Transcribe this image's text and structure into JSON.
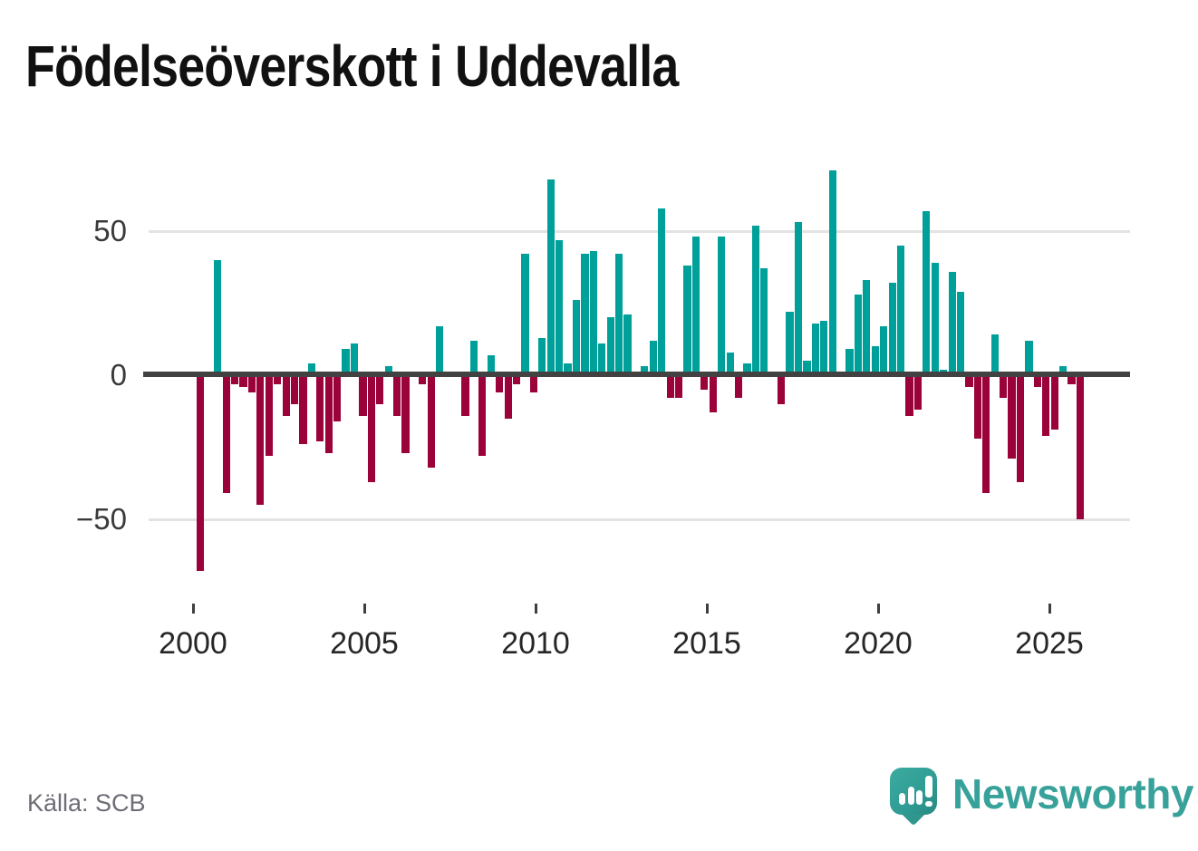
{
  "title": "Födelseöverskott i Uddevalla",
  "source": "Källa: SCB",
  "branding": {
    "wordmark": "Newsworthy",
    "logo_icon": "bar-chart-speech-bubble"
  },
  "colors": {
    "positive": "#00a09a",
    "negative": "#9b0239",
    "zero_line": "#424242",
    "gridline": "#e3e3e3",
    "brand_teal": "#38a29a"
  },
  "y_axis": {
    "tick_labels": [
      "50",
      "0",
      "−50"
    ],
    "tick_values": [
      50,
      0,
      -50
    ]
  },
  "x_axis": {
    "tick_labels": [
      "2000",
      "2005",
      "2010",
      "2015",
      "2020",
      "2025"
    ]
  },
  "chart_data": {
    "type": "bar",
    "title": "Födelseöverskott i Uddevalla",
    "x_unit": "quarter",
    "xlabel": "",
    "ylabel": "",
    "ylim": [
      -70,
      75
    ],
    "grid": "horizontal",
    "gridlines_at": [
      50,
      -50
    ],
    "legend": "none",
    "categories": [
      "2000 Q1",
      "2000 Q2",
      "2000 Q3",
      "2000 Q4",
      "2001 Q1",
      "2001 Q2",
      "2001 Q3",
      "2001 Q4",
      "2002 Q1",
      "2002 Q2",
      "2002 Q3",
      "2002 Q4",
      "2003 Q1",
      "2003 Q2",
      "2003 Q3",
      "2003 Q4",
      "2004 Q1",
      "2004 Q2",
      "2004 Q3",
      "2004 Q4",
      "2005 Q1",
      "2005 Q2",
      "2005 Q3",
      "2005 Q4",
      "2006 Q1",
      "2006 Q2",
      "2006 Q3",
      "2006 Q4",
      "2007 Q1",
      "2007 Q2",
      "2007 Q3",
      "2007 Q4",
      "2008 Q1",
      "2008 Q2",
      "2008 Q3",
      "2008 Q4",
      "2009 Q1",
      "2009 Q2",
      "2009 Q3",
      "2009 Q4",
      "2010 Q1",
      "2010 Q2",
      "2010 Q3",
      "2010 Q4",
      "2011 Q1",
      "2011 Q2",
      "2011 Q3",
      "2011 Q4",
      "2012 Q1",
      "2012 Q2",
      "2012 Q3",
      "2012 Q4",
      "2013 Q1",
      "2013 Q2",
      "2013 Q3",
      "2013 Q4",
      "2014 Q1",
      "2014 Q2",
      "2014 Q3",
      "2014 Q4",
      "2015 Q1",
      "2015 Q2",
      "2015 Q3",
      "2015 Q4",
      "2016 Q1",
      "2016 Q2",
      "2016 Q3",
      "2016 Q4",
      "2017 Q1",
      "2017 Q2",
      "2017 Q3",
      "2017 Q4",
      "2018 Q1",
      "2018 Q2",
      "2018 Q3",
      "2018 Q4",
      "2019 Q1",
      "2019 Q2",
      "2019 Q3",
      "2019 Q4",
      "2020 Q1",
      "2020 Q2",
      "2020 Q3",
      "2020 Q4",
      "2021 Q1",
      "2021 Q2",
      "2021 Q3",
      "2021 Q4",
      "2022 Q1",
      "2022 Q2",
      "2022 Q3",
      "2022 Q4",
      "2023 Q1",
      "2023 Q2",
      "2023 Q3",
      "2023 Q4",
      "2024 Q1",
      "2024 Q2",
      "2024 Q3",
      "2024 Q4",
      "2025 Q1",
      "2025 Q2",
      "2025 Q3",
      "2025 Q4"
    ],
    "values": [
      -68,
      0,
      40,
      -41,
      -3,
      -4,
      -6,
      -45,
      -28,
      -3,
      -14,
      -10,
      -24,
      4,
      -23,
      -27,
      -16,
      9,
      11,
      -14,
      -37,
      -10,
      3,
      -14,
      -27,
      1,
      -3,
      -32,
      17,
      1,
      1,
      -14,
      12,
      -28,
      7,
      -6,
      -15,
      -3,
      42,
      -6,
      13,
      68,
      47,
      4,
      26,
      42,
      43,
      11,
      20,
      42,
      21,
      0,
      3,
      12,
      58,
      -8,
      -8,
      38,
      48,
      -5,
      -13,
      48,
      8,
      -8,
      4,
      52,
      37,
      1,
      -10,
      22,
      53,
      5,
      18,
      19,
      71,
      0,
      9,
      28,
      33,
      10,
      17,
      32,
      45,
      -14,
      -12,
      57,
      39,
      2,
      36,
      29,
      -4,
      -22,
      -41,
      14,
      -8,
      -29,
      -37,
      12,
      -4,
      -21,
      -19,
      3,
      -3,
      -50
    ]
  }
}
